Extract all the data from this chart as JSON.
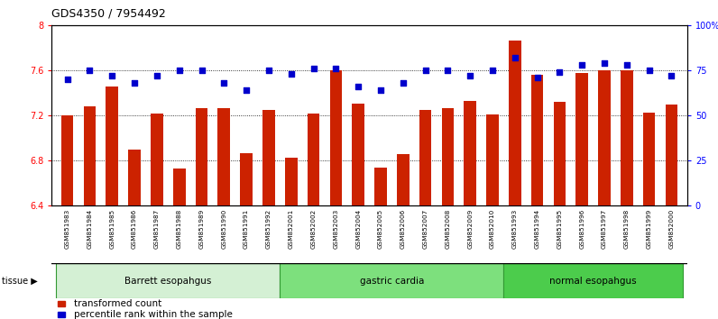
{
  "title": "GDS4350 / 7954492",
  "samples": [
    "GSM851983",
    "GSM851984",
    "GSM851985",
    "GSM851986",
    "GSM851987",
    "GSM851988",
    "GSM851989",
    "GSM851990",
    "GSM851991",
    "GSM851992",
    "GSM852001",
    "GSM852002",
    "GSM852003",
    "GSM852004",
    "GSM852005",
    "GSM852006",
    "GSM852007",
    "GSM852008",
    "GSM852009",
    "GSM852010",
    "GSM851993",
    "GSM851994",
    "GSM851995",
    "GSM851996",
    "GSM851997",
    "GSM851998",
    "GSM851999",
    "GSM852000"
  ],
  "bar_values": [
    7.2,
    7.28,
    7.46,
    6.9,
    7.22,
    6.73,
    7.27,
    7.27,
    6.87,
    7.25,
    6.83,
    7.22,
    7.6,
    7.31,
    6.74,
    6.86,
    7.25,
    7.27,
    7.33,
    7.21,
    7.87,
    7.56,
    7.32,
    7.58,
    7.6,
    7.6,
    7.23,
    7.3
  ],
  "dot_values": [
    70,
    75,
    72,
    68,
    72,
    75,
    75,
    68,
    64,
    75,
    73,
    76,
    76,
    66,
    64,
    68,
    75,
    75,
    72,
    75,
    82,
    71,
    74,
    78,
    79,
    78,
    75,
    72
  ],
  "groups": [
    {
      "label": "Barrett esopahgus",
      "start": 0,
      "end": 9,
      "color": "#d4f0d4"
    },
    {
      "label": "gastric cardia",
      "start": 10,
      "end": 19,
      "color": "#7de07d"
    },
    {
      "label": "normal esopahgus",
      "start": 20,
      "end": 27,
      "color": "#4ccc4c"
    }
  ],
  "ylim_left": [
    6.4,
    8.0
  ],
  "ylim_right": [
    0,
    100
  ],
  "yticks_left": [
    6.4,
    6.8,
    7.2,
    7.6,
    8.0
  ],
  "yticks_right": [
    0,
    25,
    50,
    75,
    100
  ],
  "ytick_labels_right": [
    "0",
    "25",
    "50",
    "75",
    "100%"
  ],
  "bar_color": "#cc2200",
  "dot_color": "#0000cc",
  "title_fontsize": 9,
  "tick_fontsize": 7,
  "sample_fontsize": 5.2,
  "group_fontsize": 7.5,
  "legend_fontsize": 7.5
}
